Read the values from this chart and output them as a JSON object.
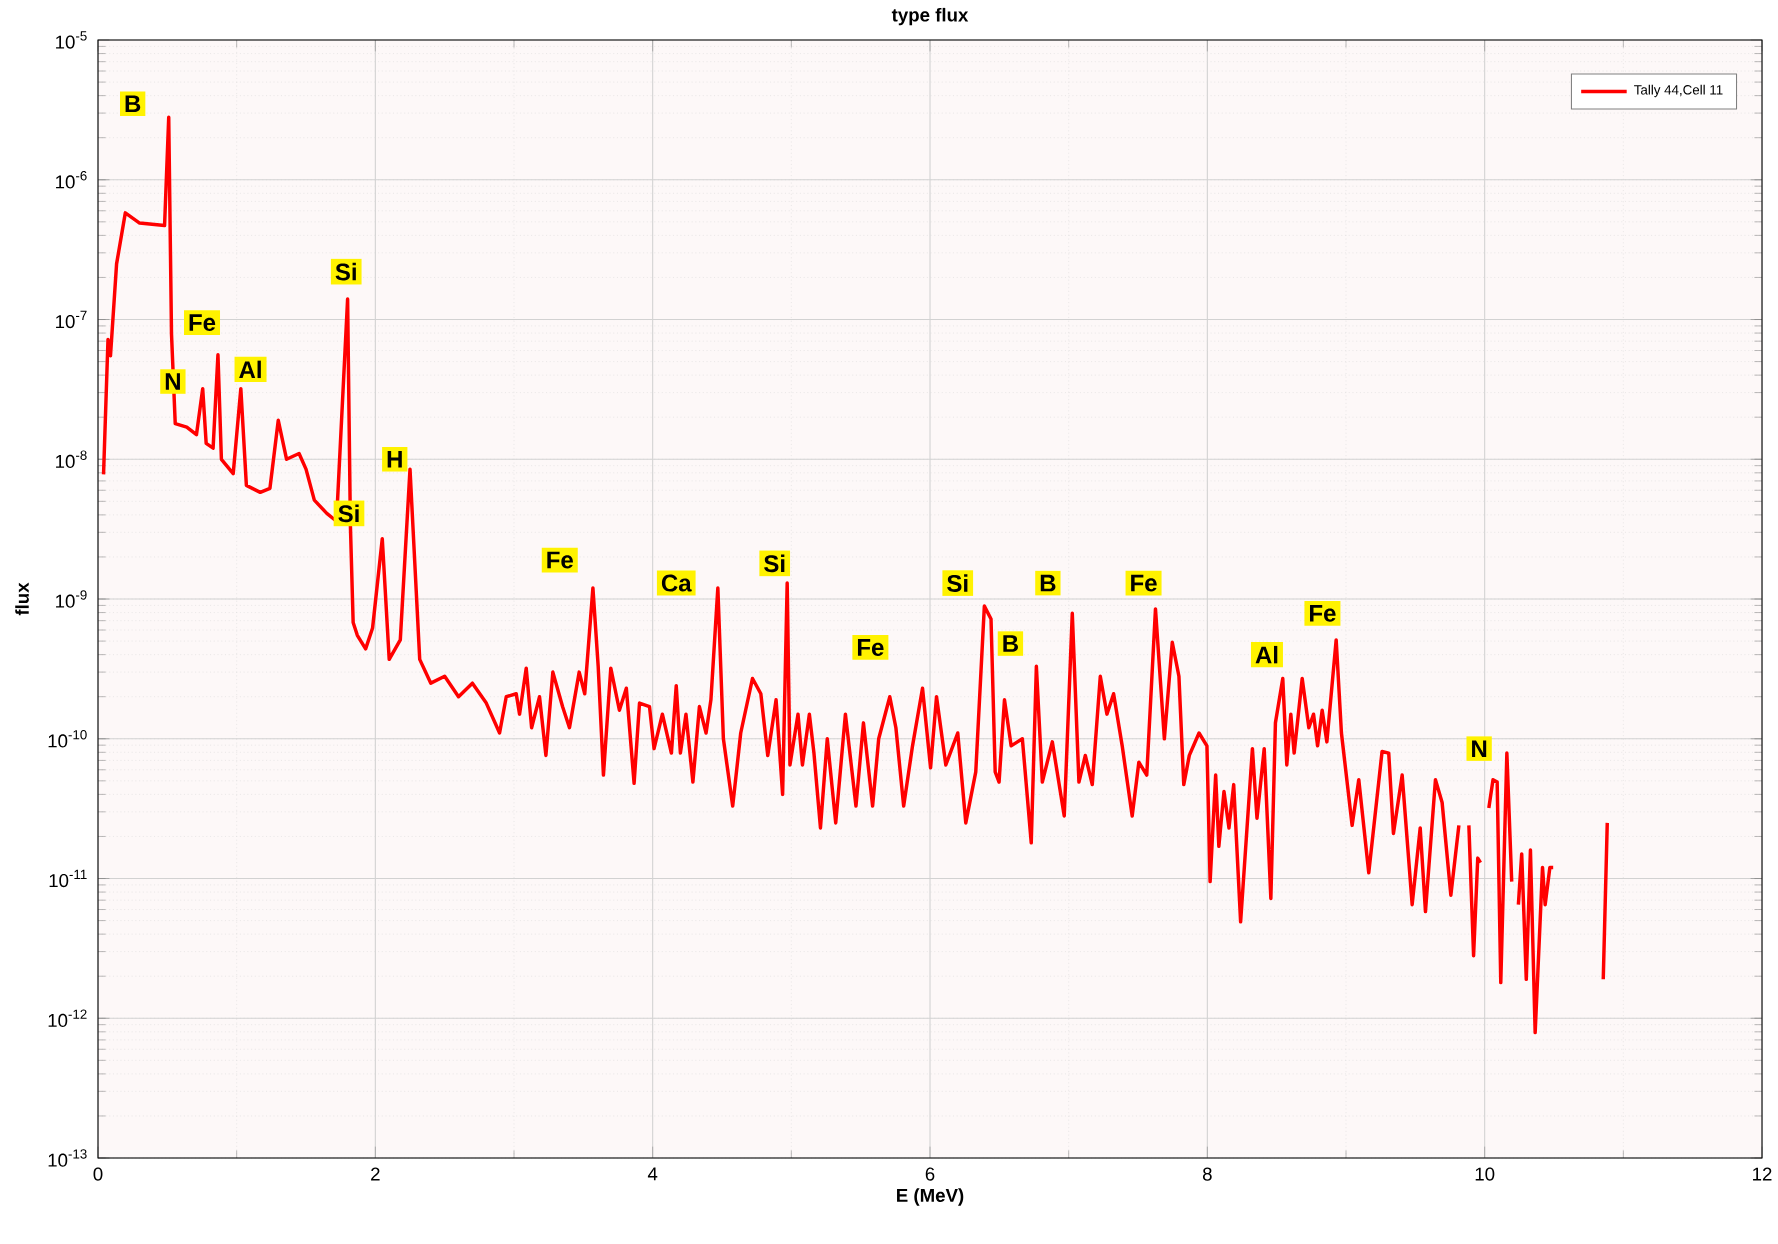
{
  "chart_data": {
    "type": "line",
    "title": "type flux",
    "xlabel": "E (MeV)",
    "ylabel": "flux",
    "log": "y",
    "grid": true,
    "legend": "top right",
    "marker": "none",
    "line_style": "solid",
    "xlim": [
      0,
      12
    ],
    "xticks": [
      0,
      2,
      4,
      6,
      8,
      10,
      12
    ],
    "ylim": [
      1e-13,
      1e-05
    ],
    "yticks": [
      {
        "value": 1e-13,
        "label": "10$^{-13}$"
      },
      {
        "value": 1e-12,
        "label": "10$^{-12}$"
      },
      {
        "value": 1e-11,
        "label": "10$^{-11}$"
      },
      {
        "value": 1e-10,
        "label": "10$^{-10}$"
      },
      {
        "value": 1e-09,
        "label": "10$^{-9}$"
      },
      {
        "value": 1e-08,
        "label": "10$^{-8}$"
      },
      {
        "value": 1e-07,
        "label": "10$^{-7}$"
      },
      {
        "value": 1e-06,
        "label": "10$^{-6}$"
      },
      {
        "value": 1e-05,
        "label": "10$^{-5}$"
      }
    ],
    "series": [
      {
        "name": "Tally 44,Cell 11",
        "color": "#ff0000",
        "x": [
          0.04,
          0.072,
          0.09,
          0.134,
          0.197,
          0.3,
          0.48,
          0.51,
          0.53,
          0.557,
          0.64,
          0.71,
          0.755,
          0.78,
          0.83,
          0.865,
          0.89,
          0.975,
          1.03,
          1.07,
          1.17,
          1.24,
          1.3,
          1.36,
          1.45,
          1.5,
          1.56,
          1.65,
          1.72,
          1.8,
          1.82,
          1.84,
          1.87,
          1.93,
          1.98,
          2.05,
          2.1,
          2.18,
          2.25,
          2.32,
          2.4,
          2.5,
          2.6,
          2.7,
          2.8,
          2.896,
          2.944,
          3.016,
          3.04,
          3.088,
          3.127,
          3.184,
          3.23,
          3.28,
          3.35,
          3.4,
          3.47,
          3.51,
          3.569,
          3.607,
          3.645,
          3.698,
          3.76,
          3.81,
          3.866,
          3.905,
          3.977,
          4.01,
          4.07,
          4.135,
          4.17,
          4.2,
          4.24,
          4.29,
          4.337,
          4.385,
          4.42,
          4.47,
          4.51,
          4.577,
          4.635,
          4.72,
          4.78,
          4.83,
          4.89,
          4.937,
          4.97,
          4.99,
          5.048,
          5.08,
          5.13,
          5.163,
          5.21,
          5.259,
          5.32,
          5.39,
          5.466,
          5.52,
          5.586,
          5.63,
          5.71,
          5.754,
          5.81,
          5.874,
          5.946,
          6.004,
          6.047,
          6.114,
          6.2,
          6.258,
          6.33,
          6.392,
          6.44,
          6.47,
          6.498,
          6.537,
          6.585,
          6.666,
          6.73,
          6.767,
          6.81,
          6.882,
          6.968,
          7.026,
          7.074,
          7.12,
          7.17,
          7.228,
          7.276,
          7.324,
          7.386,
          7.458,
          7.506,
          7.563,
          7.626,
          7.69,
          7.747,
          7.795,
          7.83,
          7.87,
          7.94,
          7.997,
          8.02,
          8.06,
          8.083,
          8.12,
          8.156,
          8.19,
          8.24,
          8.325,
          8.358,
          8.41,
          8.458,
          8.491,
          8.544,
          8.573,
          8.602,
          8.626,
          8.684,
          8.732,
          8.766,
          8.795,
          8.828,
          8.862,
          8.929,
          8.967,
          9.044,
          9.092,
          9.164,
          9.26,
          9.308,
          9.342,
          9.405,
          9.477,
          9.535,
          9.573,
          9.645,
          9.693,
          9.756,
          9.814,
          9.85,
          9.886,
          9.92,
          9.95,
          9.97,
          10.0,
          10.03,
          10.06,
          10.09,
          10.116,
          10.16,
          10.195,
          10.22,
          10.243,
          10.267,
          10.3,
          10.33,
          10.364,
          10.417,
          10.436,
          10.47,
          10.494,
          10.6,
          10.855,
          10.884
        ],
        "values": [
          7.8e-09,
          7.2e-08,
          5.5e-08,
          2.5e-07,
          5.8e-07,
          4.9e-07,
          4.7e-07,
          2.8e-06,
          7.9e-08,
          1.8e-08,
          1.7e-08,
          1.5e-08,
          3.2e-08,
          1.3e-08,
          1.2e-08,
          5.6e-08,
          1e-08,
          7.9e-09,
          3.2e-08,
          6.5e-09,
          5.8e-09,
          6.2e-09,
          1.9e-08,
          1e-08,
          1.1e-08,
          8.5e-09,
          5.1e-09,
          4.1e-09,
          3.6e-09,
          1.4e-07,
          3.4e-09,
          6.8e-10,
          5.5e-10,
          4.4e-10,
          6.2e-10,
          2.7e-09,
          3.7e-10,
          5.1e-10,
          8.5e-09,
          3.7e-10,
          2.5e-10,
          2.8e-10,
          2e-10,
          2.5e-10,
          1.8e-10,
          1.1e-10,
          2e-10,
          2.1e-10,
          1.5e-10,
          3.2e-10,
          1.2e-10,
          2e-10,
          7.6e-11,
          3e-10,
          1.7e-10,
          1.2e-10,
          3e-10,
          2.1e-10,
          1.2e-09,
          3.3e-10,
          5.5e-11,
          3.2e-10,
          1.6e-10,
          2.3e-10,
          4.8e-11,
          1.8e-10,
          1.7e-10,
          8.5e-11,
          1.5e-10,
          7.9e-11,
          2.4e-10,
          7.9e-11,
          1.5e-10,
          4.9e-11,
          1.7e-10,
          1.1e-10,
          1.9e-10,
          1.2e-09,
          1e-10,
          3.3e-11,
          1.1e-10,
          2.7e-10,
          2.1e-10,
          7.6e-11,
          1.9e-10,
          4e-11,
          1.3e-09,
          6.5e-11,
          1.5e-10,
          6.5e-11,
          1.5e-10,
          7.9e-11,
          2.3e-11,
          1e-10,
          2.5e-11,
          1.5e-10,
          3.3e-11,
          1.3e-10,
          3.3e-11,
          1e-10,
          2e-10,
          1.2e-10,
          3.3e-11,
          8.9e-11,
          2.3e-10,
          6.2e-11,
          2e-10,
          6.5e-11,
          1.1e-10,
          2.5e-11,
          5.8e-11,
          8.9e-10,
          7.2e-10,
          5.8e-11,
          4.9e-11,
          1.9e-10,
          8.9e-11,
          1e-10,
          1.8e-11,
          3.3e-10,
          4.9e-11,
          9.5e-11,
          2.8e-11,
          7.9e-10,
          4.9e-11,
          7.6e-11,
          4.7e-11,
          2.8e-10,
          1.5e-10,
          2.1e-10,
          8.9e-11,
          2.8e-11,
          6.8e-11,
          5.5e-11,
          8.5e-10,
          1e-10,
          4.9e-10,
          2.8e-10,
          4.7e-11,
          7.6e-11,
          1.1e-10,
          8.9e-11,
          9.5e-12,
          5.5e-11,
          1.7e-11,
          4.2e-11,
          2.3e-11,
          4.7e-11,
          4.9e-12,
          8.5e-11,
          2.7e-11,
          8.5e-11,
          7.2e-12,
          1.3e-10,
          2.7e-10,
          6.5e-11,
          1.5e-10,
          7.9e-11,
          2.7e-10,
          1.2e-10,
          1.5e-10,
          8.9e-11,
          1.6e-10,
          9.5e-11,
          5.1e-10,
          1.1e-10,
          2.4e-11,
          5.1e-11,
          1.1e-11,
          8.1e-11,
          7.9e-11,
          2.1e-11,
          5.5e-11,
          6.5e-12,
          2.3e-11,
          5.8e-12,
          5.1e-11,
          3.5e-11,
          7.6e-12,
          2.4e-11,
          null,
          2.4e-11,
          2.8e-12,
          1.4e-11,
          1.3e-11,
          null,
          3.2e-11,
          5.1e-11,
          4.9e-11,
          1.8e-12,
          7.9e-11,
          9.5e-12,
          null,
          6.5e-12,
          1.5e-11,
          1.9e-12,
          1.6e-11,
          7.9e-13,
          1.2e-11,
          6.5e-12,
          1.2e-11,
          1.2e-11,
          null,
          1.9e-12,
          2.5e-11
        ]
      }
    ],
    "annotations": [
      {
        "text": "B",
        "x": 0.25,
        "y": 3.5e-06
      },
      {
        "text": "N",
        "x": 0.54,
        "y": 3.6e-08
      },
      {
        "text": "Fe",
        "x": 0.75,
        "y": 9.5e-08
      },
      {
        "text": "Al",
        "x": 1.1,
        "y": 4.4e-08
      },
      {
        "text": "Si",
        "x": 1.79,
        "y": 2.2e-07
      },
      {
        "text": "Si",
        "x": 1.81,
        "y": 4.1e-09
      },
      {
        "text": "H",
        "x": 2.14,
        "y": 1e-08
      },
      {
        "text": "Fe",
        "x": 3.33,
        "y": 1.9e-09
      },
      {
        "text": "Ca",
        "x": 4.17,
        "y": 1.3e-09
      },
      {
        "text": "Si",
        "x": 4.88,
        "y": 1.8e-09
      },
      {
        "text": "Fe",
        "x": 5.57,
        "y": 4.5e-10
      },
      {
        "text": "Si",
        "x": 6.2,
        "y": 1.3e-09
      },
      {
        "text": "B",
        "x": 6.58,
        "y": 4.8e-10
      },
      {
        "text": "B",
        "x": 6.85,
        "y": 1.3e-09
      },
      {
        "text": "Fe",
        "x": 7.54,
        "y": 1.3e-09
      },
      {
        "text": "Al",
        "x": 8.43,
        "y": 4e-10
      },
      {
        "text": "Fe",
        "x": 8.83,
        "y": 7.9e-10
      },
      {
        "text": "N",
        "x": 9.96,
        "y": 8.5e-11
      }
    ]
  }
}
